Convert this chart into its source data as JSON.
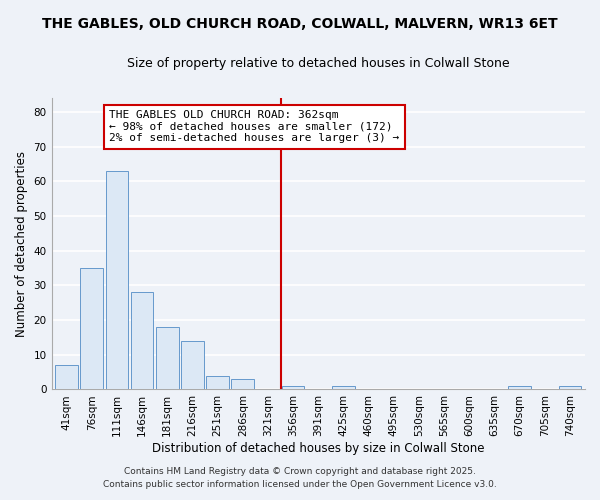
{
  "title": "THE GABLES, OLD CHURCH ROAD, COLWALL, MALVERN, WR13 6ET",
  "subtitle": "Size of property relative to detached houses in Colwall Stone",
  "xlabel": "Distribution of detached houses by size in Colwall Stone",
  "ylabel": "Number of detached properties",
  "bar_color": "#dce8f5",
  "bar_edge_color": "#6699cc",
  "categories": [
    "41sqm",
    "76sqm",
    "111sqm",
    "146sqm",
    "181sqm",
    "216sqm",
    "251sqm",
    "286sqm",
    "321sqm",
    "356sqm",
    "391sqm",
    "425sqm",
    "460sqm",
    "495sqm",
    "530sqm",
    "565sqm",
    "600sqm",
    "635sqm",
    "670sqm",
    "705sqm",
    "740sqm"
  ],
  "values": [
    7,
    35,
    63,
    28,
    18,
    14,
    4,
    3,
    0,
    1,
    0,
    1,
    0,
    0,
    0,
    0,
    0,
    0,
    1,
    0,
    1
  ],
  "ylim": [
    0,
    84
  ],
  "yticks": [
    0,
    10,
    20,
    30,
    40,
    50,
    60,
    70,
    80
  ],
  "vline_x_index": 9,
  "vline_color": "#cc0000",
  "annotation_title": "THE GABLES OLD CHURCH ROAD: 362sqm",
  "annotation_line1": "← 98% of detached houses are smaller (172)",
  "annotation_line2": "2% of semi-detached houses are larger (3) →",
  "annotation_box_edge": "#cc0000",
  "footer1": "Contains HM Land Registry data © Crown copyright and database right 2025.",
  "footer2": "Contains public sector information licensed under the Open Government Licence v3.0.",
  "background_color": "#eef2f8",
  "grid_color": "#ffffff",
  "title_fontsize": 10,
  "subtitle_fontsize": 9,
  "axis_label_fontsize": 8.5,
  "tick_fontsize": 7.5,
  "annotation_fontsize": 8,
  "footer_fontsize": 6.5
}
